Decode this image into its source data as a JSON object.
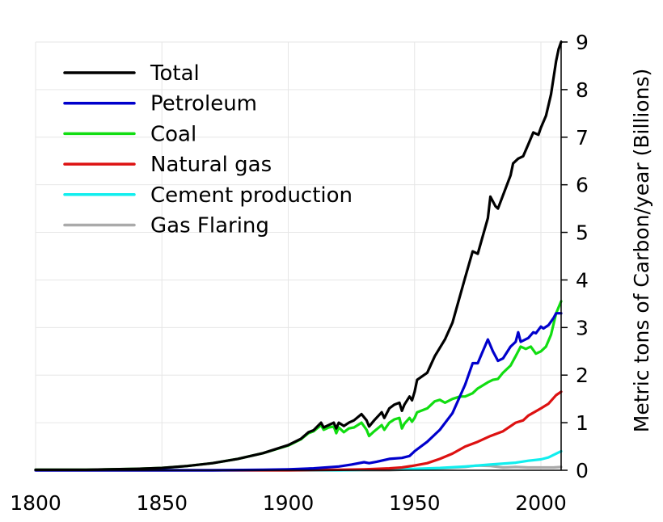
{
  "chart_data": {
    "type": "line",
    "title": "",
    "xlabel": "",
    "ylabel": "Metric tons of Carbon/year (Billions)",
    "xlim": [
      1800,
      2008
    ],
    "ylim": [
      0,
      9
    ],
    "x_ticks": [
      1800,
      1850,
      1900,
      1950,
      2000
    ],
    "y_ticks": [
      0,
      1,
      2,
      3,
      4,
      5,
      6,
      7,
      8,
      9
    ],
    "y_axis_side": "right",
    "grid": true,
    "legend_placement": "top-left",
    "series": [
      {
        "name": "Total",
        "color": "#000000",
        "points": [
          [
            1800,
            0.01
          ],
          [
            1820,
            0.01
          ],
          [
            1840,
            0.03
          ],
          [
            1850,
            0.05
          ],
          [
            1860,
            0.09
          ],
          [
            1870,
            0.15
          ],
          [
            1880,
            0.24
          ],
          [
            1890,
            0.36
          ],
          [
            1900,
            0.53
          ],
          [
            1905,
            0.66
          ],
          [
            1908,
            0.8
          ],
          [
            1910,
            0.84
          ],
          [
            1913,
            1.0
          ],
          [
            1914,
            0.9
          ],
          [
            1916,
            0.95
          ],
          [
            1918,
            1.0
          ],
          [
            1919,
            0.88
          ],
          [
            1920,
            1.0
          ],
          [
            1922,
            0.93
          ],
          [
            1924,
            1.0
          ],
          [
            1926,
            1.05
          ],
          [
            1929,
            1.18
          ],
          [
            1931,
            1.05
          ],
          [
            1932,
            0.92
          ],
          [
            1934,
            1.05
          ],
          [
            1937,
            1.22
          ],
          [
            1938,
            1.1
          ],
          [
            1940,
            1.3
          ],
          [
            1942,
            1.38
          ],
          [
            1944,
            1.42
          ],
          [
            1945,
            1.25
          ],
          [
            1946,
            1.38
          ],
          [
            1948,
            1.55
          ],
          [
            1949,
            1.47
          ],
          [
            1950,
            1.65
          ],
          [
            1951,
            1.9
          ],
          [
            1955,
            2.05
          ],
          [
            1958,
            2.4
          ],
          [
            1962,
            2.75
          ],
          [
            1965,
            3.1
          ],
          [
            1970,
            4.05
          ],
          [
            1973,
            4.6
          ],
          [
            1975,
            4.55
          ],
          [
            1979,
            5.3
          ],
          [
            1980,
            5.75
          ],
          [
            1982,
            5.55
          ],
          [
            1983,
            5.5
          ],
          [
            1988,
            6.2
          ],
          [
            1989,
            6.45
          ],
          [
            1991,
            6.55
          ],
          [
            1993,
            6.6
          ],
          [
            1995,
            6.85
          ],
          [
            1997,
            7.1
          ],
          [
            1999,
            7.05
          ],
          [
            2000,
            7.2
          ],
          [
            2002,
            7.45
          ],
          [
            2004,
            7.9
          ],
          [
            2006,
            8.6
          ],
          [
            2007,
            8.85
          ],
          [
            2008,
            9.0
          ]
        ]
      },
      {
        "name": "Petroleum",
        "color": "#0000cc",
        "points": [
          [
            1800,
            0
          ],
          [
            1870,
            0.0
          ],
          [
            1890,
            0.01
          ],
          [
            1900,
            0.02
          ],
          [
            1910,
            0.04
          ],
          [
            1920,
            0.08
          ],
          [
            1925,
            0.12
          ],
          [
            1930,
            0.17
          ],
          [
            1932,
            0.15
          ],
          [
            1935,
            0.18
          ],
          [
            1940,
            0.24
          ],
          [
            1945,
            0.26
          ],
          [
            1948,
            0.3
          ],
          [
            1950,
            0.4
          ],
          [
            1955,
            0.6
          ],
          [
            1960,
            0.85
          ],
          [
            1965,
            1.2
          ],
          [
            1970,
            1.8
          ],
          [
            1973,
            2.25
          ],
          [
            1975,
            2.25
          ],
          [
            1977,
            2.5
          ],
          [
            1979,
            2.75
          ],
          [
            1981,
            2.5
          ],
          [
            1983,
            2.3
          ],
          [
            1985,
            2.35
          ],
          [
            1988,
            2.6
          ],
          [
            1990,
            2.7
          ],
          [
            1991,
            2.9
          ],
          [
            1992,
            2.7
          ],
          [
            1995,
            2.78
          ],
          [
            1997,
            2.9
          ],
          [
            1998,
            2.88
          ],
          [
            2000,
            3.02
          ],
          [
            2001,
            2.98
          ],
          [
            2003,
            3.05
          ],
          [
            2005,
            3.2
          ],
          [
            2006,
            3.3
          ],
          [
            2008,
            3.3
          ]
        ]
      },
      {
        "name": "Coal",
        "color": "#11dd11",
        "points": [
          [
            1800,
            0.01
          ],
          [
            1820,
            0.01
          ],
          [
            1840,
            0.03
          ],
          [
            1850,
            0.05
          ],
          [
            1860,
            0.09
          ],
          [
            1870,
            0.15
          ],
          [
            1880,
            0.24
          ],
          [
            1890,
            0.36
          ],
          [
            1900,
            0.52
          ],
          [
            1905,
            0.65
          ],
          [
            1908,
            0.78
          ],
          [
            1910,
            0.82
          ],
          [
            1913,
            0.95
          ],
          [
            1914,
            0.85
          ],
          [
            1916,
            0.9
          ],
          [
            1918,
            0.92
          ],
          [
            1919,
            0.78
          ],
          [
            1920,
            0.9
          ],
          [
            1922,
            0.8
          ],
          [
            1924,
            0.88
          ],
          [
            1926,
            0.9
          ],
          [
            1929,
            1.0
          ],
          [
            1931,
            0.85
          ],
          [
            1932,
            0.72
          ],
          [
            1934,
            0.82
          ],
          [
            1937,
            0.95
          ],
          [
            1938,
            0.85
          ],
          [
            1940,
            1.0
          ],
          [
            1942,
            1.07
          ],
          [
            1944,
            1.1
          ],
          [
            1945,
            0.88
          ],
          [
            1946,
            0.98
          ],
          [
            1948,
            1.1
          ],
          [
            1949,
            1.02
          ],
          [
            1950,
            1.1
          ],
          [
            1951,
            1.22
          ],
          [
            1955,
            1.3
          ],
          [
            1958,
            1.45
          ],
          [
            1960,
            1.48
          ],
          [
            1962,
            1.42
          ],
          [
            1965,
            1.5
          ],
          [
            1968,
            1.55
          ],
          [
            1970,
            1.55
          ],
          [
            1973,
            1.62
          ],
          [
            1975,
            1.72
          ],
          [
            1979,
            1.85
          ],
          [
            1981,
            1.9
          ],
          [
            1983,
            1.92
          ],
          [
            1985,
            2.05
          ],
          [
            1988,
            2.2
          ],
          [
            1990,
            2.4
          ],
          [
            1992,
            2.6
          ],
          [
            1994,
            2.55
          ],
          [
            1996,
            2.6
          ],
          [
            1998,
            2.45
          ],
          [
            2000,
            2.5
          ],
          [
            2002,
            2.6
          ],
          [
            2004,
            2.85
          ],
          [
            2006,
            3.3
          ],
          [
            2008,
            3.55
          ]
        ]
      },
      {
        "name": "Natural gas",
        "color": "#dd1111",
        "points": [
          [
            1800,
            0
          ],
          [
            1880,
            0
          ],
          [
            1900,
            0.0
          ],
          [
            1920,
            0.01
          ],
          [
            1930,
            0.02
          ],
          [
            1940,
            0.04
          ],
          [
            1945,
            0.06
          ],
          [
            1950,
            0.1
          ],
          [
            1955,
            0.15
          ],
          [
            1960,
            0.24
          ],
          [
            1965,
            0.35
          ],
          [
            1970,
            0.5
          ],
          [
            1975,
            0.6
          ],
          [
            1980,
            0.72
          ],
          [
            1985,
            0.82
          ],
          [
            1990,
            1.0
          ],
          [
            1993,
            1.05
          ],
          [
            1995,
            1.15
          ],
          [
            2000,
            1.3
          ],
          [
            2003,
            1.4
          ],
          [
            2006,
            1.58
          ],
          [
            2008,
            1.65
          ]
        ]
      },
      {
        "name": "Cement production",
        "color": "#11eeee",
        "points": [
          [
            1800,
            0
          ],
          [
            1920,
            0
          ],
          [
            1930,
            0.01
          ],
          [
            1940,
            0.02
          ],
          [
            1950,
            0.03
          ],
          [
            1960,
            0.05
          ],
          [
            1970,
            0.08
          ],
          [
            1980,
            0.12
          ],
          [
            1990,
            0.16
          ],
          [
            1995,
            0.2
          ],
          [
            2000,
            0.23
          ],
          [
            2003,
            0.27
          ],
          [
            2006,
            0.35
          ],
          [
            2008,
            0.4
          ]
        ]
      },
      {
        "name": "Gas Flaring",
        "color": "#aaaaaa",
        "points": [
          [
            1800,
            0
          ],
          [
            1940,
            0
          ],
          [
            1950,
            0.02
          ],
          [
            1960,
            0.04
          ],
          [
            1970,
            0.07
          ],
          [
            1973,
            0.09
          ],
          [
            1975,
            0.1
          ],
          [
            1980,
            0.09
          ],
          [
            1985,
            0.06
          ],
          [
            1990,
            0.07
          ],
          [
            1995,
            0.06
          ],
          [
            2000,
            0.06
          ],
          [
            2005,
            0.06
          ],
          [
            2008,
            0.07
          ]
        ]
      }
    ]
  }
}
